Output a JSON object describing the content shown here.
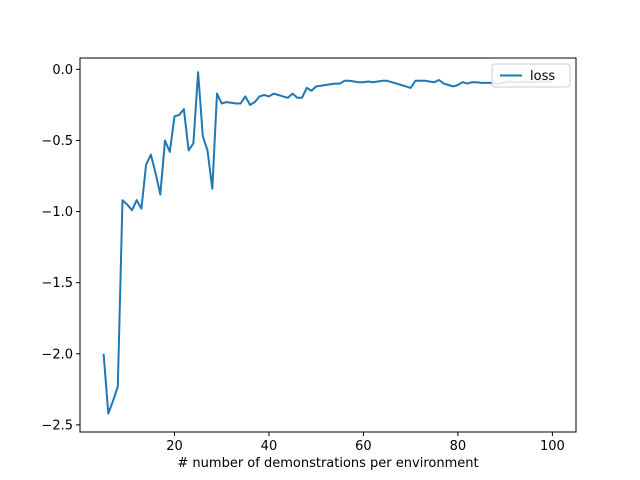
{
  "chart_data": {
    "type": "line",
    "title": "",
    "xlabel": "# number of demonstrations per environment",
    "ylabel": "",
    "xlim": [
      0,
      105
    ],
    "ylim": [
      -2.55,
      0.08
    ],
    "xticks": [
      20,
      40,
      60,
      80,
      100
    ],
    "yticks": [
      0.0,
      -0.5,
      -1.0,
      -1.5,
      -2.0,
      -2.5
    ],
    "legend_position": "top-right",
    "grid": false,
    "series": [
      {
        "name": "loss",
        "color": "#1f77b4",
        "x": [
          5,
          6,
          7,
          8,
          9,
          10,
          11,
          12,
          13,
          14,
          15,
          16,
          17,
          18,
          19,
          20,
          21,
          22,
          23,
          24,
          25,
          26,
          27,
          28,
          29,
          30,
          31,
          32,
          33,
          34,
          35,
          36,
          37,
          38,
          39,
          40,
          41,
          42,
          43,
          44,
          45,
          46,
          47,
          48,
          49,
          50,
          51,
          52,
          53,
          54,
          55,
          56,
          57,
          58,
          59,
          60,
          61,
          62,
          63,
          64,
          65,
          66,
          67,
          68,
          69,
          70,
          71,
          72,
          73,
          74,
          75,
          76,
          77,
          78,
          79,
          80,
          81,
          82,
          83,
          84,
          85,
          86,
          87,
          88,
          89,
          90,
          91,
          92,
          93,
          94,
          95,
          96,
          97,
          98,
          99,
          100
        ],
        "y": [
          -2.0,
          -2.42,
          -2.33,
          -2.23,
          -0.92,
          -0.95,
          -0.99,
          -0.92,
          -0.98,
          -0.67,
          -0.6,
          -0.73,
          -0.88,
          -0.5,
          -0.58,
          -0.33,
          -0.32,
          -0.28,
          -0.57,
          -0.52,
          -0.02,
          -0.47,
          -0.57,
          -0.84,
          -0.17,
          -0.24,
          -0.23,
          -0.235,
          -0.24,
          -0.24,
          -0.19,
          -0.25,
          -0.23,
          -0.19,
          -0.18,
          -0.19,
          -0.17,
          -0.18,
          -0.19,
          -0.2,
          -0.17,
          -0.2,
          -0.2,
          -0.13,
          -0.15,
          -0.12,
          -0.115,
          -0.11,
          -0.105,
          -0.1,
          -0.1,
          -0.08,
          -0.08,
          -0.085,
          -0.09,
          -0.09,
          -0.085,
          -0.09,
          -0.085,
          -0.08,
          -0.08,
          -0.09,
          -0.1,
          -0.11,
          -0.12,
          -0.13,
          -0.08,
          -0.08,
          -0.08,
          -0.085,
          -0.09,
          -0.075,
          -0.1,
          -0.11,
          -0.12,
          -0.11,
          -0.09,
          -0.1,
          -0.09,
          -0.09,
          -0.095,
          -0.095,
          -0.095,
          -0.1,
          -0.1,
          -0.09,
          -0.085,
          -0.09,
          -0.09,
          -0.085,
          -0.09,
          -0.09,
          -0.085,
          -0.085,
          -0.085,
          -0.085
        ]
      }
    ]
  }
}
